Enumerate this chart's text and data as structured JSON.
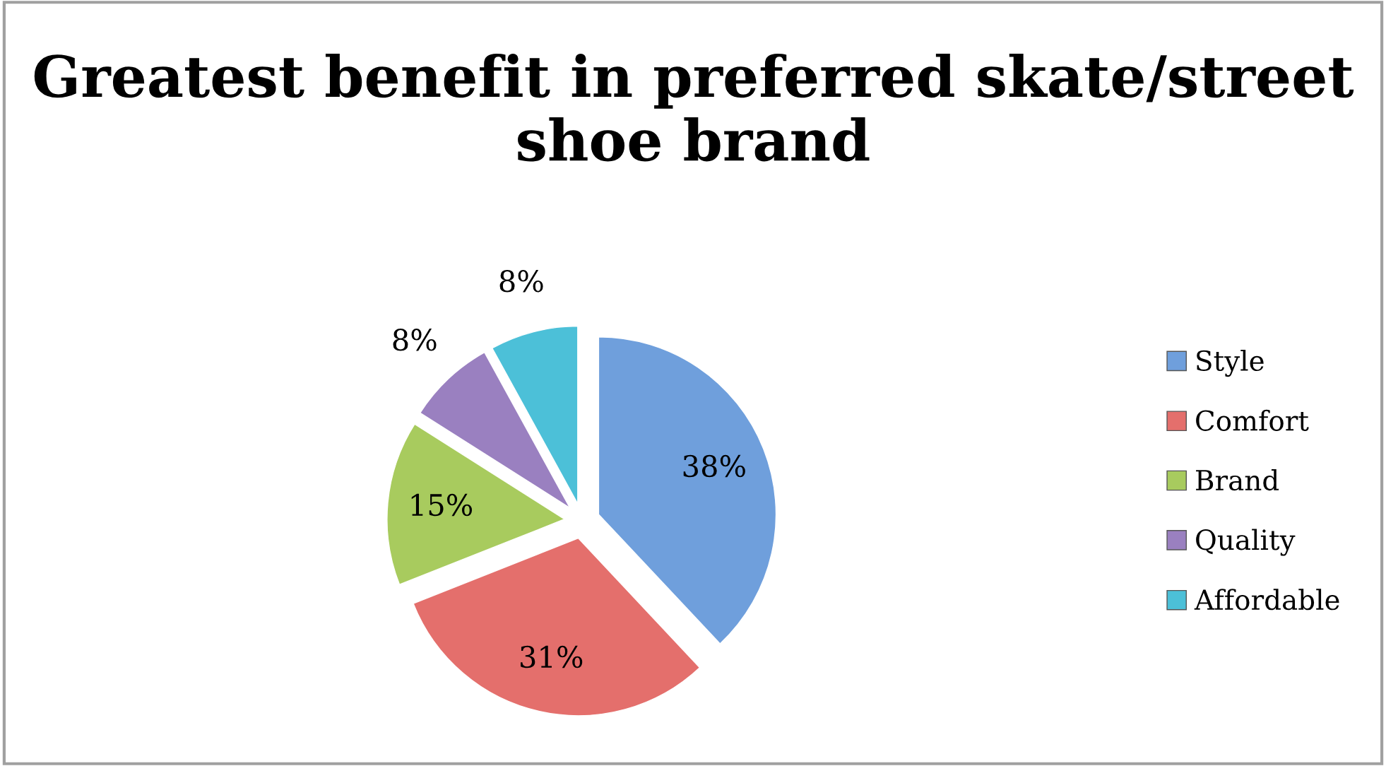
{
  "chart_data": {
    "type": "pie",
    "title": "Greatest benefit in preferred skate/street shoe brand",
    "categories": [
      "Style",
      "Comfort",
      "Brand",
      "Quality",
      "Affordable"
    ],
    "values": [
      38,
      31,
      15,
      8,
      8
    ],
    "colors": [
      "#6f9fdc",
      "#e46f6c",
      "#a8cb5e",
      "#9a80c0",
      "#4cc0d8"
    ],
    "value_labels": [
      "38%",
      "31%",
      "15%",
      "8%",
      "8%"
    ],
    "legend": "right"
  }
}
